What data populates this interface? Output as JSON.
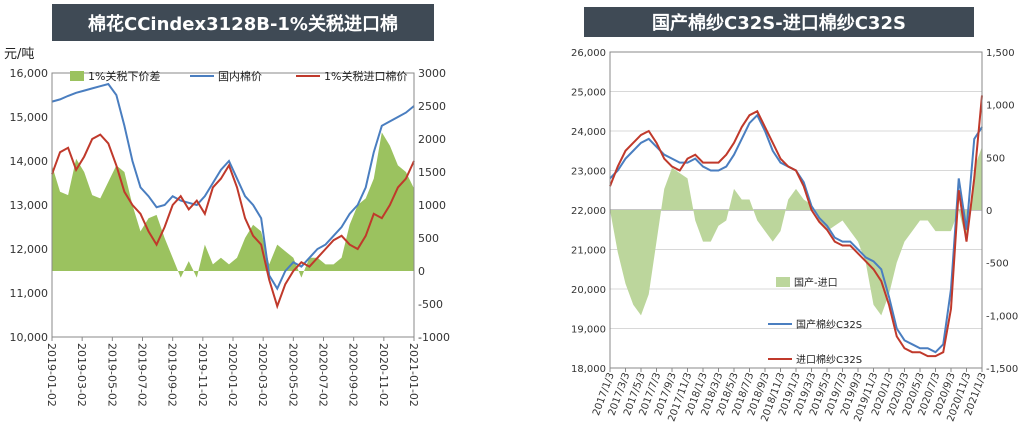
{
  "colors": {
    "header_bg": "#3f4a55",
    "header_text": "#ffffff",
    "green": "#9bc25f",
    "blue": "#4a7ec0",
    "red": "#c0392b",
    "green_pale": "#bcd69c"
  },
  "chart_data": [
    {
      "type": "line",
      "title": "棉花CCindex3128B-1%关税进口棉",
      "ylabel": "元/吨",
      "ylim": [
        10000,
        16000
      ],
      "y2lim": [
        -1000,
        3000
      ],
      "yticks": [
        "10,000",
        "11,000",
        "12,000",
        "13,000",
        "14,000",
        "15,000",
        "16,000"
      ],
      "y2ticks": [
        "-1000",
        "-500",
        "0",
        "500",
        "1000",
        "1500",
        "2000",
        "2500",
        "3000"
      ],
      "xticks": [
        "2019-01-02",
        "2019-03-02",
        "2019-05-02",
        "2019-07-02",
        "2019-09-02",
        "2019-11-02",
        "2020-01-02",
        "2020-03-02",
        "2020-05-02",
        "2020-07-02",
        "2020-09-02",
        "2020-11-02",
        "2021-01-02"
      ],
      "legend": [
        "1%关税下价差",
        "国内棉价",
        "1%关税进口棉价"
      ],
      "series": [
        {
          "name": "国内棉价",
          "axis": "left",
          "values": [
            15350,
            15400,
            15480,
            15550,
            15600,
            15650,
            15700,
            15750,
            15500,
            14800,
            14000,
            13400,
            13200,
            12950,
            13000,
            13200,
            13100,
            13050,
            13000,
            13200,
            13500,
            13800,
            14000,
            13600,
            13200,
            13000,
            12700,
            11400,
            11100,
            11500,
            11700,
            11600,
            11800,
            12000,
            12100,
            12300,
            12500,
            12800,
            13000,
            13400,
            14200,
            14800,
            14900,
            15000,
            15100,
            15250
          ]
        },
        {
          "name": "1%关税进口棉价",
          "axis": "left",
          "values": [
            13700,
            14200,
            14300,
            13800,
            14100,
            14500,
            14600,
            14400,
            13900,
            13300,
            13000,
            12800,
            12400,
            12100,
            12500,
            13000,
            13200,
            12900,
            13100,
            12800,
            13400,
            13600,
            13900,
            13400,
            12700,
            12300,
            12100,
            11300,
            10700,
            11200,
            11500,
            11700,
            11600,
            11800,
            12000,
            12200,
            12300,
            12100,
            12000,
            12300,
            12800,
            12700,
            13000,
            13400,
            13600,
            14000
          ]
        },
        {
          "name": "1%关税下价差",
          "axis": "right",
          "type": "area",
          "values": [
            1600,
            1200,
            1150,
            1700,
            1500,
            1150,
            1100,
            1350,
            1600,
            1500,
            1000,
            600,
            800,
            850,
            500,
            200,
            -100,
            150,
            -100,
            400,
            100,
            200,
            100,
            200,
            500,
            700,
            600,
            100,
            400,
            300,
            200,
            -100,
            200,
            200,
            100,
            100,
            200,
            700,
            1000,
            1100,
            1400,
            2100,
            1900,
            1600,
            1500,
            1250
          ]
        }
      ]
    },
    {
      "type": "line",
      "title": "国产棉纱C32S-进口棉纱C32S",
      "ylim": [
        18000,
        26000
      ],
      "y2lim": [
        -1500,
        1500
      ],
      "yticks": [
        "18,000",
        "19,000",
        "20,000",
        "21,000",
        "22,000",
        "23,000",
        "24,000",
        "25,000",
        "26,000"
      ],
      "y2ticks": [
        "-1,500",
        "-1,000",
        "-500",
        "0",
        "500",
        "1,000",
        "1,500"
      ],
      "xticks": [
        "2017/1/3",
        "2017/3/3",
        "2017/5/3",
        "2017/7/3",
        "2017/9/3",
        "2017/11/3",
        "2018/1/3",
        "2018/3/3",
        "2018/5/3",
        "2018/7/3",
        "2018/9/3",
        "2018/11/3",
        "2019/1/3",
        "2019/3/3",
        "2019/5/3",
        "2019/7/3",
        "2019/9/3",
        "2019/11/3",
        "2020/1/3",
        "2020/3/3",
        "2020/5/3",
        "2020/7/3",
        "2020/9/3",
        "2020/11/3",
        "2021/1/3"
      ],
      "legend": [
        "国产-进口",
        "国产棉纱C32S",
        "进口棉纱C32S"
      ],
      "series": [
        {
          "name": "国产棉纱C32S",
          "axis": "left",
          "values": [
            22800,
            23000,
            23300,
            23500,
            23700,
            23800,
            23600,
            23400,
            23300,
            23200,
            23200,
            23300,
            23100,
            23000,
            23000,
            23100,
            23400,
            23800,
            24200,
            24400,
            24000,
            23500,
            23200,
            23100,
            23000,
            22700,
            22100,
            21800,
            21600,
            21300,
            21200,
            21200,
            21000,
            20800,
            20700,
            20500,
            19800,
            19000,
            18700,
            18600,
            18500,
            18500,
            18400,
            18600,
            20000,
            22800,
            21500,
            23800,
            24100
          ]
        },
        {
          "name": "进口棉纱C32S",
          "axis": "left",
          "values": [
            22600,
            23100,
            23500,
            23700,
            23900,
            24000,
            23700,
            23300,
            23100,
            23000,
            23300,
            23400,
            23200,
            23200,
            23200,
            23400,
            23700,
            24100,
            24400,
            24500,
            24100,
            23700,
            23300,
            23100,
            23000,
            22600,
            22000,
            21700,
            21500,
            21200,
            21100,
            21100,
            20900,
            20700,
            20500,
            20200,
            19600,
            18800,
            18500,
            18400,
            18400,
            18300,
            18300,
            18400,
            19500,
            22500,
            21200,
            22800,
            24900
          ]
        },
        {
          "name": "国产-进口",
          "axis": "right",
          "type": "area",
          "values": [
            0,
            -400,
            -700,
            -900,
            -1000,
            -800,
            -300,
            200,
            400,
            350,
            300,
            -100,
            -300,
            -300,
            -150,
            -100,
            200,
            100,
            100,
            -100,
            -200,
            -300,
            -200,
            100,
            200,
            100,
            50,
            -100,
            -200,
            -150,
            -100,
            -200,
            -300,
            -500,
            -900,
            -1000,
            -800,
            -500,
            -300,
            -200,
            -100,
            -100,
            -200,
            -200,
            -200,
            0,
            -300,
            400,
            600
          ]
        }
      ]
    }
  ]
}
